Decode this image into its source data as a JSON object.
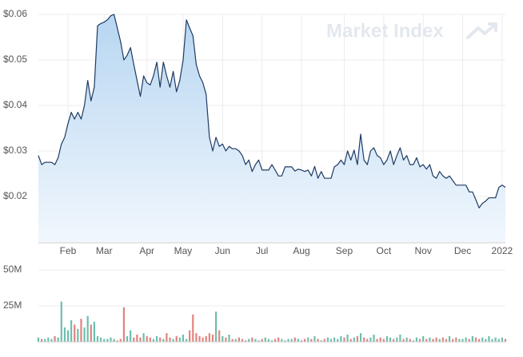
{
  "brand": "Market Index",
  "chart_data": [
    {
      "type": "area",
      "line_color": "#1e3a64",
      "fill_top": "#b7d6f1",
      "fill_bottom": "#f1f7fd",
      "grid": true,
      "ylim": [
        0.01,
        0.06
      ],
      "yticks": [
        {
          "value": 0.02,
          "label": "$0.02"
        },
        {
          "value": 0.03,
          "label": "$0.03"
        },
        {
          "value": 0.04,
          "label": "$0.04"
        },
        {
          "value": 0.05,
          "label": "$0.05"
        },
        {
          "value": 0.06,
          "label": "$0.06"
        }
      ],
      "categories": [
        null,
        null,
        null,
        null,
        null,
        null,
        null,
        null,
        null,
        "Feb",
        null,
        null,
        null,
        null,
        null,
        null,
        null,
        null,
        null,
        null,
        "Mar",
        null,
        null,
        null,
        null,
        null,
        null,
        null,
        null,
        null,
        null,
        null,
        null,
        "Apr",
        null,
        null,
        null,
        null,
        null,
        null,
        null,
        null,
        null,
        null,
        "May",
        null,
        null,
        null,
        null,
        null,
        null,
        null,
        null,
        null,
        null,
        null,
        "Jun",
        null,
        null,
        null,
        null,
        null,
        null,
        null,
        null,
        null,
        null,
        null,
        "Jul",
        null,
        null,
        null,
        null,
        null,
        null,
        null,
        null,
        null,
        null,
        null,
        "Aug",
        null,
        null,
        null,
        null,
        null,
        null,
        null,
        null,
        null,
        null,
        null,
        null,
        "Sep",
        null,
        null,
        null,
        null,
        null,
        null,
        null,
        null,
        null,
        null,
        null,
        "Oct",
        null,
        null,
        null,
        null,
        null,
        null,
        null,
        null,
        null,
        null,
        null,
        "Nov",
        null,
        null,
        null,
        null,
        null,
        null,
        null,
        null,
        null,
        null,
        null,
        "Dec",
        null,
        null,
        null,
        null,
        null,
        null,
        null,
        null,
        null,
        null,
        null,
        "2022",
        null
      ],
      "values": [
        0.029,
        0.027,
        0.0275,
        0.0275,
        0.0275,
        0.027,
        0.0285,
        0.0315,
        0.033,
        0.036,
        0.0385,
        0.037,
        0.0385,
        0.037,
        0.04,
        0.0455,
        0.041,
        0.044,
        0.0575,
        0.058,
        0.0583,
        0.0588,
        0.0597,
        0.06,
        0.057,
        0.054,
        0.05,
        0.051,
        0.0527,
        0.049,
        0.0455,
        0.042,
        0.0465,
        0.045,
        0.0445,
        0.0465,
        0.0495,
        0.044,
        0.0495,
        0.0465,
        0.044,
        0.0475,
        0.043,
        0.0455,
        0.05,
        0.0588,
        0.057,
        0.0553,
        0.049,
        0.0465,
        0.045,
        0.0425,
        0.033,
        0.03,
        0.033,
        0.031,
        0.0315,
        0.03,
        0.031,
        0.0305,
        0.0305,
        0.03,
        0.029,
        0.027,
        0.028,
        0.0255,
        0.027,
        0.028,
        0.0258,
        0.0258,
        0.0258,
        0.027,
        0.0258,
        0.0245,
        0.0245,
        0.0265,
        0.0265,
        0.0265,
        0.0256,
        0.026,
        0.0258,
        0.0255,
        0.0258,
        0.0245,
        0.0266,
        0.024,
        0.0255,
        0.024,
        0.024,
        0.024,
        0.0265,
        0.027,
        0.028,
        0.027,
        0.03,
        0.028,
        0.0302,
        0.027,
        0.0337,
        0.028,
        0.027,
        0.03,
        0.0307,
        0.029,
        0.0285,
        0.027,
        0.028,
        0.03,
        0.027,
        0.029,
        0.0307,
        0.028,
        0.029,
        0.027,
        0.027,
        0.0285,
        0.0265,
        0.027,
        0.026,
        0.027,
        0.0245,
        0.024,
        0.0255,
        0.0245,
        0.024,
        0.0245,
        0.0235,
        0.0225,
        0.0225,
        0.0225,
        0.0225,
        0.021,
        0.021,
        0.0193,
        0.0175,
        0.0185,
        0.019,
        0.0197,
        0.0197,
        0.0197,
        0.022,
        0.0225,
        0.022
      ]
    },
    {
      "type": "bar",
      "up_color": "#6cbfae",
      "down_color": "#e0837f",
      "ylim": [
        0,
        50000000
      ],
      "yticks": [
        {
          "value": 25000000,
          "label": "25M"
        },
        {
          "value": 50000000,
          "label": "50M"
        }
      ],
      "values": [
        3000000,
        2000000,
        2000000,
        3000000,
        2000000,
        4000000,
        3000000,
        28000000,
        10000000,
        8000000,
        15000000,
        12000000,
        9000000,
        16000000,
        10000000,
        18000000,
        12000000,
        14000000,
        4000000,
        3000000,
        2000000,
        2000000,
        3000000,
        2000000,
        1000000,
        2000000,
        24000000,
        4000000,
        8000000,
        3000000,
        5000000,
        3000000,
        6000000,
        4000000,
        3000000,
        2000000,
        4000000,
        3000000,
        2000000,
        6000000,
        3000000,
        2000000,
        4000000,
        3000000,
        5000000,
        2000000,
        8000000,
        19000000,
        6000000,
        4000000,
        3000000,
        4000000,
        6000000,
        5000000,
        21000000,
        8000000,
        4000000,
        3000000,
        5000000,
        2000000,
        2000000,
        3000000,
        2000000,
        1000000,
        2000000,
        3000000,
        2000000,
        1000000,
        2000000,
        3000000,
        2000000,
        1000000,
        2000000,
        3000000,
        2000000,
        1000000,
        2000000,
        2000000,
        3000000,
        2000000,
        1000000,
        2000000,
        3000000,
        2000000,
        4000000,
        2000000,
        1000000,
        2000000,
        3000000,
        2000000,
        3000000,
        2000000,
        4000000,
        3000000,
        5000000,
        2000000,
        3000000,
        4000000,
        6000000,
        3000000,
        2000000,
        3000000,
        5000000,
        2000000,
        3000000,
        2000000,
        4000000,
        3000000,
        2000000,
        3000000,
        5000000,
        2000000,
        3000000,
        2000000,
        1000000,
        3000000,
        2000000,
        4000000,
        2000000,
        3000000,
        2000000,
        3000000,
        2000000,
        3000000,
        2000000,
        4000000,
        2000000,
        3000000,
        2000000,
        2000000,
        3000000,
        2000000,
        4000000,
        3000000,
        2000000,
        3000000,
        2000000,
        4000000,
        2000000,
        3000000,
        2000000,
        3000000,
        2000000
      ]
    }
  ]
}
